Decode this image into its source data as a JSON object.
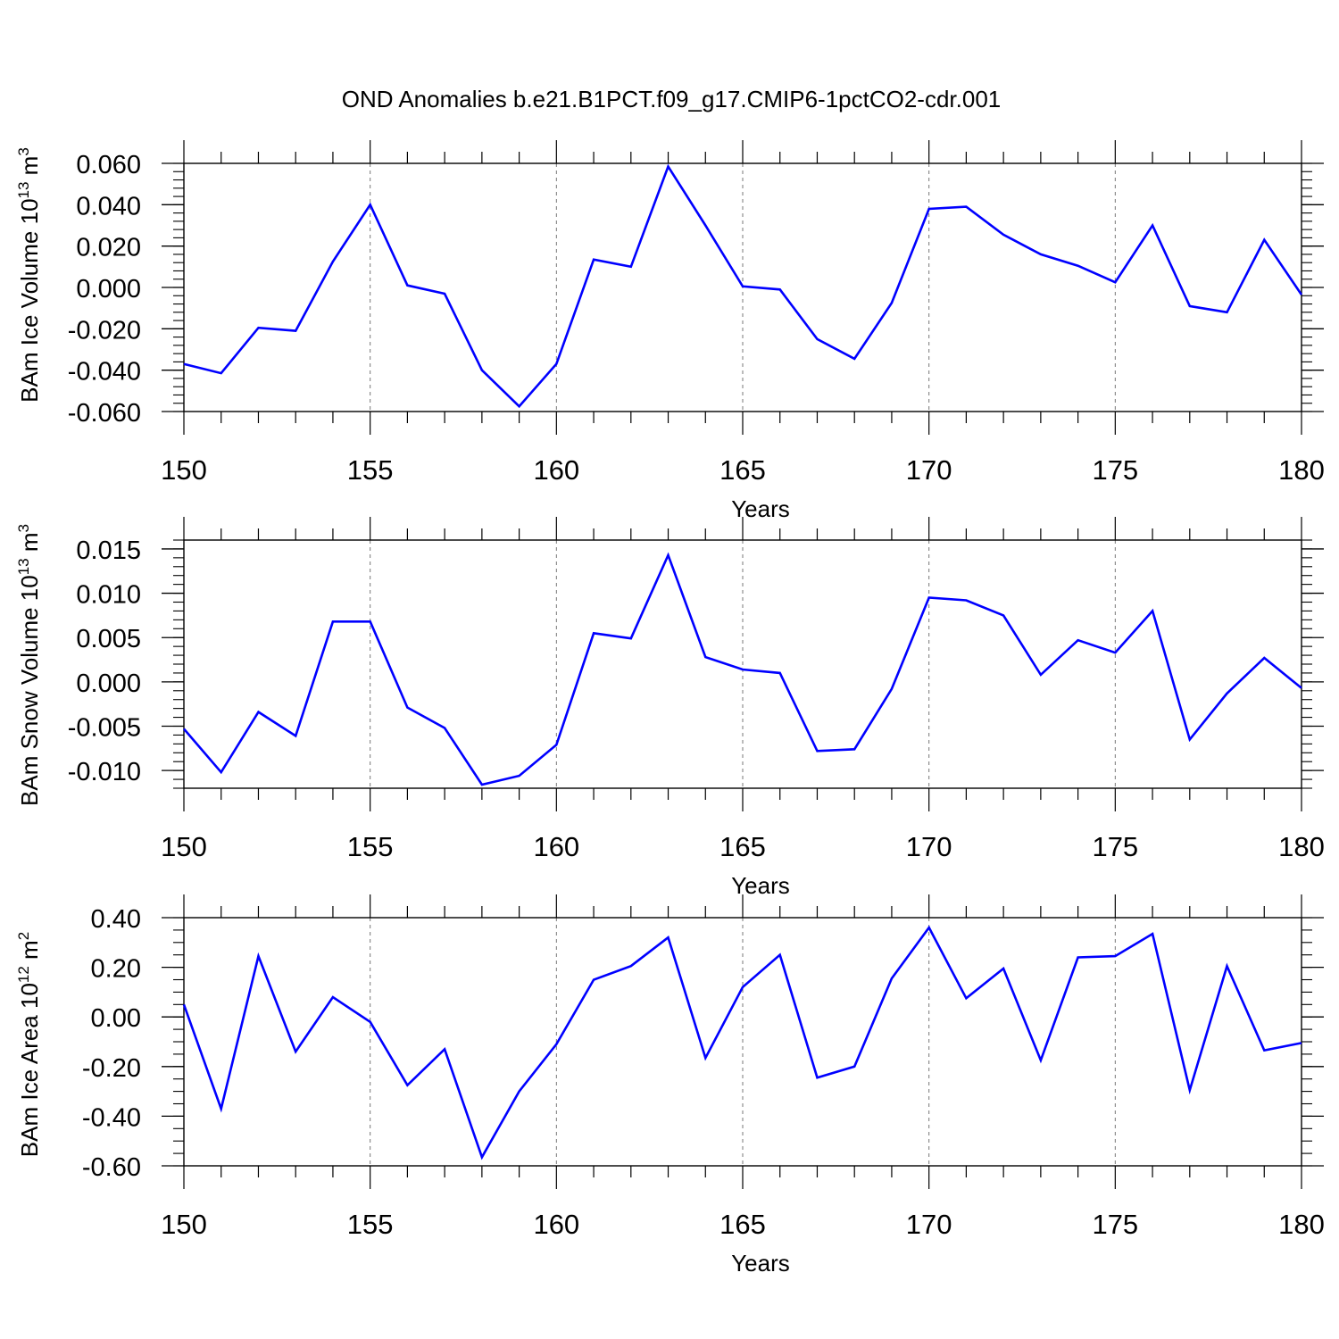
{
  "figure_title": "OND Anomalies b.e21.B1PCT.f09_g17.CMIP6-1pctCO2-cdr.001",
  "chart_data": [
    {
      "type": "line",
      "title": "",
      "xlabel": "Years",
      "ylabel_text": "BAm Ice Volume 10",
      "ylabel_exp": "13",
      "ylabel_unit": " m",
      "ylabel_unit_exp": "3",
      "xlim": [
        150,
        180
      ],
      "ylim": [
        -0.06,
        0.06
      ],
      "x_ticks": [
        150,
        155,
        160,
        165,
        170,
        175,
        180
      ],
      "x_tick_labels": [
        "150",
        "155",
        "160",
        "165",
        "170",
        "175",
        "180"
      ],
      "y_ticks": [
        -0.06,
        -0.04,
        -0.02,
        0.0,
        0.02,
        0.04,
        0.06
      ],
      "y_tick_labels": [
        "-0.060",
        "-0.040",
        "-0.020",
        "0.000",
        "0.020",
        "0.040",
        "0.060"
      ],
      "y_minor_step": 0.004,
      "grid": "vertical dashed at major x ticks",
      "line_color": "#0000ff",
      "x": [
        150,
        151,
        152,
        153,
        154,
        155,
        156,
        157,
        158,
        159,
        160,
        161,
        162,
        163,
        164,
        165,
        166,
        167,
        168,
        169,
        170,
        171,
        172,
        173,
        174,
        175,
        176,
        177,
        178,
        179,
        180
      ],
      "values": [
        -0.037,
        -0.0415,
        -0.0195,
        -0.021,
        0.0125,
        0.04,
        0.001,
        -0.003,
        -0.04,
        -0.0575,
        -0.037,
        0.0135,
        0.01,
        0.0585,
        0.03,
        0.0005,
        -0.001,
        -0.025,
        -0.0345,
        -0.0075,
        0.038,
        0.039,
        0.0255,
        0.016,
        0.0105,
        0.0025,
        0.03,
        -0.009,
        -0.012,
        0.023,
        -0.0035
      ]
    },
    {
      "type": "line",
      "title": "",
      "xlabel": "Years",
      "ylabel_text": "BAm Snow Volume 10",
      "ylabel_exp": "13",
      "ylabel_unit": " m",
      "ylabel_unit_exp": "3",
      "xlim": [
        150,
        180
      ],
      "ylim": [
        -0.012,
        0.016
      ],
      "x_ticks": [
        150,
        155,
        160,
        165,
        170,
        175,
        180
      ],
      "x_tick_labels": [
        "150",
        "155",
        "160",
        "165",
        "170",
        "175",
        "180"
      ],
      "y_ticks": [
        -0.01,
        -0.005,
        0.0,
        0.005,
        0.01,
        0.015
      ],
      "y_tick_labels": [
        "-0.010",
        "-0.005",
        "0.000",
        "0.005",
        "0.010",
        "0.015"
      ],
      "y_minor_step": 0.001,
      "grid": "vertical dashed at major x ticks",
      "line_color": "#0000ff",
      "x": [
        150,
        151,
        152,
        153,
        154,
        155,
        156,
        157,
        158,
        159,
        160,
        161,
        162,
        163,
        164,
        165,
        166,
        167,
        168,
        169,
        170,
        171,
        172,
        173,
        174,
        175,
        176,
        177,
        178,
        179,
        180
      ],
      "values": [
        -0.0053,
        -0.0102,
        -0.0034,
        -0.0061,
        0.0068,
        0.0068,
        -0.0029,
        -0.0052,
        -0.0116,
        -0.0106,
        -0.0071,
        0.0055,
        0.0049,
        0.0143,
        0.0028,
        0.0014,
        0.001,
        -0.0078,
        -0.0076,
        -0.0008,
        0.0095,
        0.0092,
        0.0075,
        0.0008,
        0.0047,
        0.0033,
        0.008,
        -0.0065,
        -0.0013,
        0.0027,
        -0.0007
      ]
    },
    {
      "type": "line",
      "title": "",
      "xlabel": "Years",
      "ylabel_text": "BAm Ice Area 10",
      "ylabel_exp": "12",
      "ylabel_unit": " m",
      "ylabel_unit_exp": "2",
      "xlim": [
        150,
        180
      ],
      "ylim": [
        -0.6,
        0.4
      ],
      "x_ticks": [
        150,
        155,
        160,
        165,
        170,
        175,
        180
      ],
      "x_tick_labels": [
        "150",
        "155",
        "160",
        "165",
        "170",
        "175",
        "180"
      ],
      "y_ticks": [
        -0.6,
        -0.4,
        -0.2,
        0.0,
        0.2,
        0.4
      ],
      "y_tick_labels": [
        "-0.60",
        "-0.40",
        "-0.20",
        "0.00",
        "0.20",
        "0.40"
      ],
      "y_minor_step": 0.05,
      "grid": "vertical dashed at major x ticks",
      "line_color": "#0000ff",
      "x": [
        150,
        151,
        152,
        153,
        154,
        155,
        156,
        157,
        158,
        159,
        160,
        161,
        162,
        163,
        164,
        165,
        166,
        167,
        168,
        169,
        170,
        171,
        172,
        173,
        174,
        175,
        176,
        177,
        178,
        179,
        180
      ],
      "values": [
        0.05,
        -0.37,
        0.245,
        -0.14,
        0.08,
        -0.02,
        -0.275,
        -0.13,
        -0.565,
        -0.3,
        -0.11,
        0.15,
        0.205,
        0.32,
        -0.165,
        0.12,
        0.25,
        -0.245,
        -0.2,
        0.155,
        0.36,
        0.075,
        0.195,
        -0.175,
        0.24,
        0.245,
        0.335,
        -0.295,
        0.205,
        -0.135,
        -0.105
      ]
    }
  ]
}
